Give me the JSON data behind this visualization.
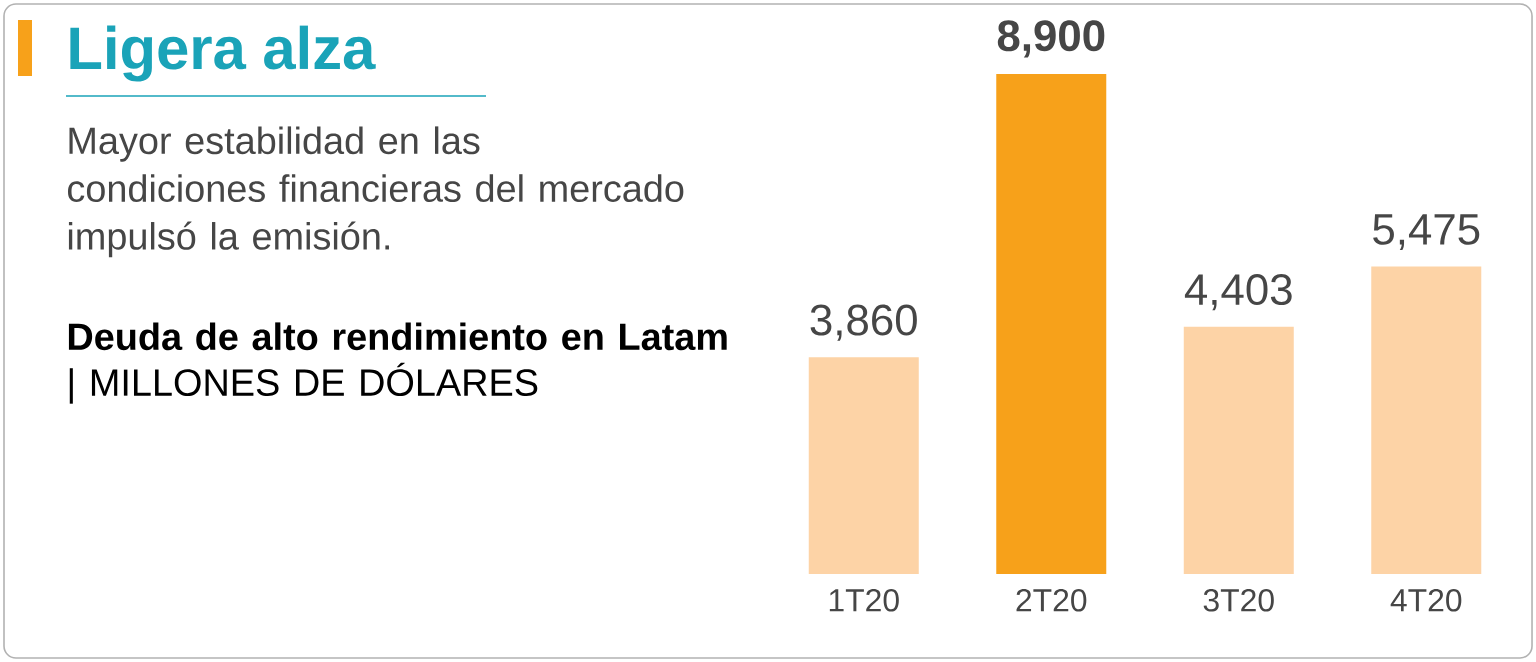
{
  "chart_data": {
    "type": "bar",
    "title": "Ligera alza",
    "subtitle": "Mayor estabilidad en las condiciones financieras del mercado impulsó la emisión.",
    "annotations": [
      "**Deuda de alto rendimiento en Latam** | MILLONES DE DÓLARES"
    ],
    "categories": [
      "1T20",
      "2T20",
      "3T20",
      "4T20"
    ],
    "values": [
      3860,
      8900,
      4403,
      5475
    ],
    "value_labels": [
      "3,860",
      "**8,900**",
      "4,403",
      "5,475"
    ],
    "colors": [
      "#fdd3a6",
      "#f7a11a",
      "#fdd3a6",
      "#fdd3a6"
    ]
  }
}
